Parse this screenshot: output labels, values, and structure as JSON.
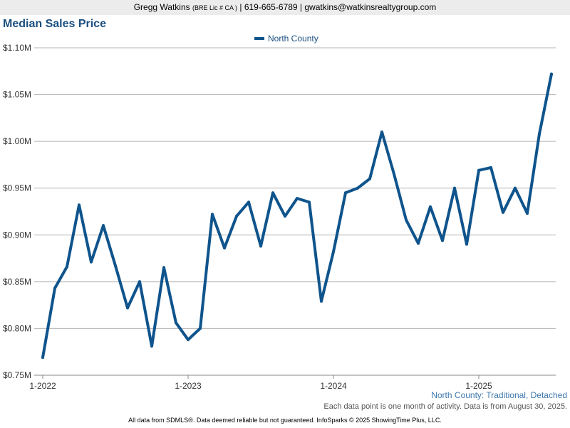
{
  "header": {
    "name": "Gregg Watkins",
    "license": "(BRE Lic # CA )",
    "separator": "|",
    "phone": "619-665-6789",
    "email": "gwatkins@watkinsrealtygroup.com"
  },
  "footer": {
    "subtitle": "North County: Traditional, Detached",
    "note": "Each data point is one month of activity. Data is from August 30, 2025.",
    "disclaimer": "All data from SDMLS®. Data deemed reliable but not guaranteed. InfoSparks © 2025 ShowingTime Plus, LLC."
  },
  "colors": {
    "series": "#0f548c",
    "grid": "#b5b5b5",
    "title": "#1b4f80"
  },
  "chart_data": {
    "type": "line",
    "title": "Median Sales Price",
    "legend_position": "top-center",
    "grid": true,
    "ylim": [
      0.75,
      1.1
    ],
    "y_ticks": [
      0.75,
      0.8,
      0.85,
      0.9,
      0.95,
      1.0,
      1.05,
      1.1
    ],
    "y_tick_labels": [
      "$0.75M",
      "$0.80M",
      "$0.85M",
      "$0.90M",
      "$0.95M",
      "$1.00M",
      "$1.05M",
      "$1.10M"
    ],
    "x_tick_labels": [
      "1-2022",
      "1-2023",
      "1-2024",
      "1-2025"
    ],
    "x_tick_months": [
      "2022-01",
      "2023-01",
      "2024-01",
      "2025-01"
    ],
    "x_range": [
      "2022-01",
      "2025-08"
    ],
    "series": [
      {
        "name": "North County",
        "x": [
          "2022-01",
          "2022-02",
          "2022-03",
          "2022-04",
          "2022-05",
          "2022-06",
          "2022-07",
          "2022-08",
          "2022-09",
          "2022-10",
          "2022-11",
          "2022-12",
          "2023-01",
          "2023-02",
          "2023-03",
          "2023-04",
          "2023-05",
          "2023-06",
          "2023-07",
          "2023-08",
          "2023-09",
          "2023-10",
          "2023-11",
          "2023-12",
          "2024-01",
          "2024-02",
          "2024-03",
          "2024-04",
          "2024-05",
          "2024-06",
          "2024-07",
          "2024-08",
          "2024-09",
          "2024-10",
          "2024-11",
          "2024-12",
          "2025-01",
          "2025-02",
          "2025-03",
          "2025-04",
          "2025-05",
          "2025-06",
          "2025-07"
        ],
        "values": [
          0.769,
          0.843,
          0.866,
          0.932,
          0.871,
          0.91,
          0.867,
          0.822,
          0.85,
          0.781,
          0.865,
          0.806,
          0.788,
          0.8,
          0.922,
          0.886,
          0.92,
          0.935,
          0.888,
          0.945,
          0.92,
          0.939,
          0.935,
          0.829,
          0.882,
          0.945,
          0.95,
          0.96,
          1.01,
          0.965,
          0.916,
          0.891,
          0.93,
          0.894,
          0.95,
          0.89,
          0.969,
          0.972,
          0.924,
          0.95,
          0.923,
          1.008,
          1.072
        ]
      }
    ]
  }
}
